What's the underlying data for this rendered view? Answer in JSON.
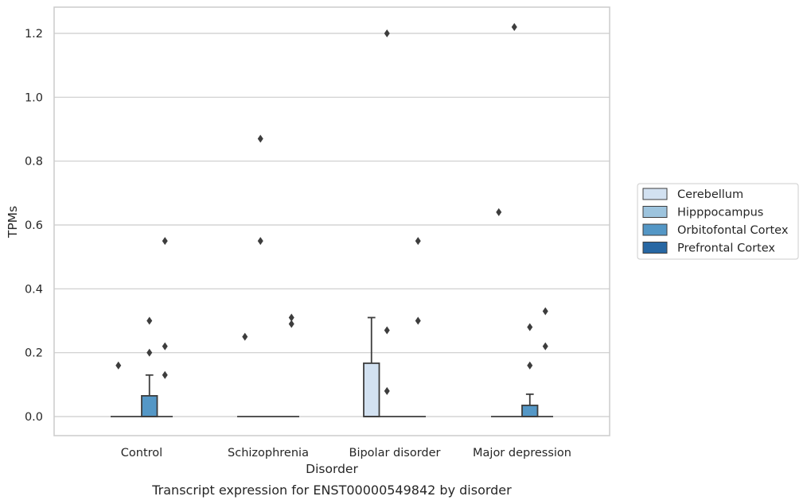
{
  "chart_data": {
    "type": "box",
    "xlabel": "Disorder",
    "ylabel": "TPMs",
    "caption": "Transcript expression for ENST00000549842 by disorder",
    "ylim": [
      -0.06,
      1.28
    ],
    "yticks": [
      0.0,
      0.2,
      0.4,
      0.6,
      0.8,
      1.0,
      1.2
    ],
    "ytick_labels": [
      "0.0",
      "0.2",
      "0.4",
      "0.6",
      "0.8",
      "1.0",
      "1.2"
    ],
    "grid": "horizontal",
    "legend_placement": "right",
    "categories": [
      "Control",
      "Schizophrenia",
      "Bipolar disorder",
      "Major depression"
    ],
    "series": [
      {
        "name": "Cerebellum",
        "color": "#d2e1f1",
        "boxes": [
          {
            "category": "Control",
            "q1": 0,
            "median": 0,
            "q3": 0,
            "whisker_low": 0,
            "whisker_high": 0,
            "outliers": [
              0.16
            ]
          },
          {
            "category": "Schizophrenia",
            "q1": 0,
            "median": 0,
            "q3": 0,
            "whisker_low": 0,
            "whisker_high": 0,
            "outliers": [
              0.25
            ]
          },
          {
            "category": "Bipolar disorder",
            "q1": 0,
            "median": 0,
            "q3": 0.167,
            "whisker_low": 0,
            "whisker_high": 0.31,
            "outliers": []
          },
          {
            "category": "Major depression",
            "q1": 0,
            "median": 0,
            "q3": 0,
            "whisker_low": 0,
            "whisker_high": 0,
            "outliers": [
              0.64
            ]
          }
        ]
      },
      {
        "name": "Hipppocampus",
        "color": "#9dc4de",
        "boxes": [
          {
            "category": "Control",
            "q1": 0,
            "median": 0,
            "q3": 0,
            "whisker_low": 0,
            "whisker_high": 0,
            "outliers": []
          },
          {
            "category": "Schizophrenia",
            "q1": 0,
            "median": 0,
            "q3": 0,
            "whisker_low": 0,
            "whisker_high": 0,
            "outliers": [
              0.87,
              0.55
            ]
          },
          {
            "category": "Bipolar disorder",
            "q1": 0,
            "median": 0,
            "q3": 0,
            "whisker_low": 0,
            "whisker_high": 0,
            "outliers": [
              1.2,
              0.27,
              0.08
            ]
          },
          {
            "category": "Major depression",
            "q1": 0,
            "median": 0,
            "q3": 0,
            "whisker_low": 0,
            "whisker_high": 0,
            "outliers": [
              1.22
            ]
          }
        ]
      },
      {
        "name": "Orbitofontal Cortex",
        "color": "#5497c6",
        "boxes": [
          {
            "category": "Control",
            "q1": 0,
            "median": 0,
            "q3": 0.065,
            "whisker_low": 0,
            "whisker_high": 0.13,
            "outliers": [
              0.3,
              0.2
            ]
          },
          {
            "category": "Schizophrenia",
            "q1": 0,
            "median": 0,
            "q3": 0,
            "whisker_low": 0,
            "whisker_high": 0,
            "outliers": []
          },
          {
            "category": "Bipolar disorder",
            "q1": 0,
            "median": 0,
            "q3": 0,
            "whisker_low": 0,
            "whisker_high": 0,
            "outliers": []
          },
          {
            "category": "Major depression",
            "q1": 0,
            "median": 0,
            "q3": 0.035,
            "whisker_low": 0,
            "whisker_high": 0.07,
            "outliers": [
              0.28,
              0.16
            ]
          }
        ]
      },
      {
        "name": "Prefrontal Cortex",
        "color": "#2767a3",
        "boxes": [
          {
            "category": "Control",
            "q1": 0,
            "median": 0,
            "q3": 0,
            "whisker_low": 0,
            "whisker_high": 0,
            "outliers": [
              0.55,
              0.22,
              0.13
            ]
          },
          {
            "category": "Schizophrenia",
            "q1": 0,
            "median": 0,
            "q3": 0,
            "whisker_low": 0,
            "whisker_high": 0,
            "outliers": [
              0.31,
              0.29
            ]
          },
          {
            "category": "Bipolar disorder",
            "q1": 0,
            "median": 0,
            "q3": 0,
            "whisker_low": 0,
            "whisker_high": 0,
            "outliers": [
              0.55,
              0.3
            ]
          },
          {
            "category": "Major depression",
            "q1": 0,
            "median": 0,
            "q3": 0,
            "whisker_low": 0,
            "whisker_high": 0,
            "outliers": [
              0.33,
              0.22
            ]
          }
        ]
      }
    ]
  }
}
